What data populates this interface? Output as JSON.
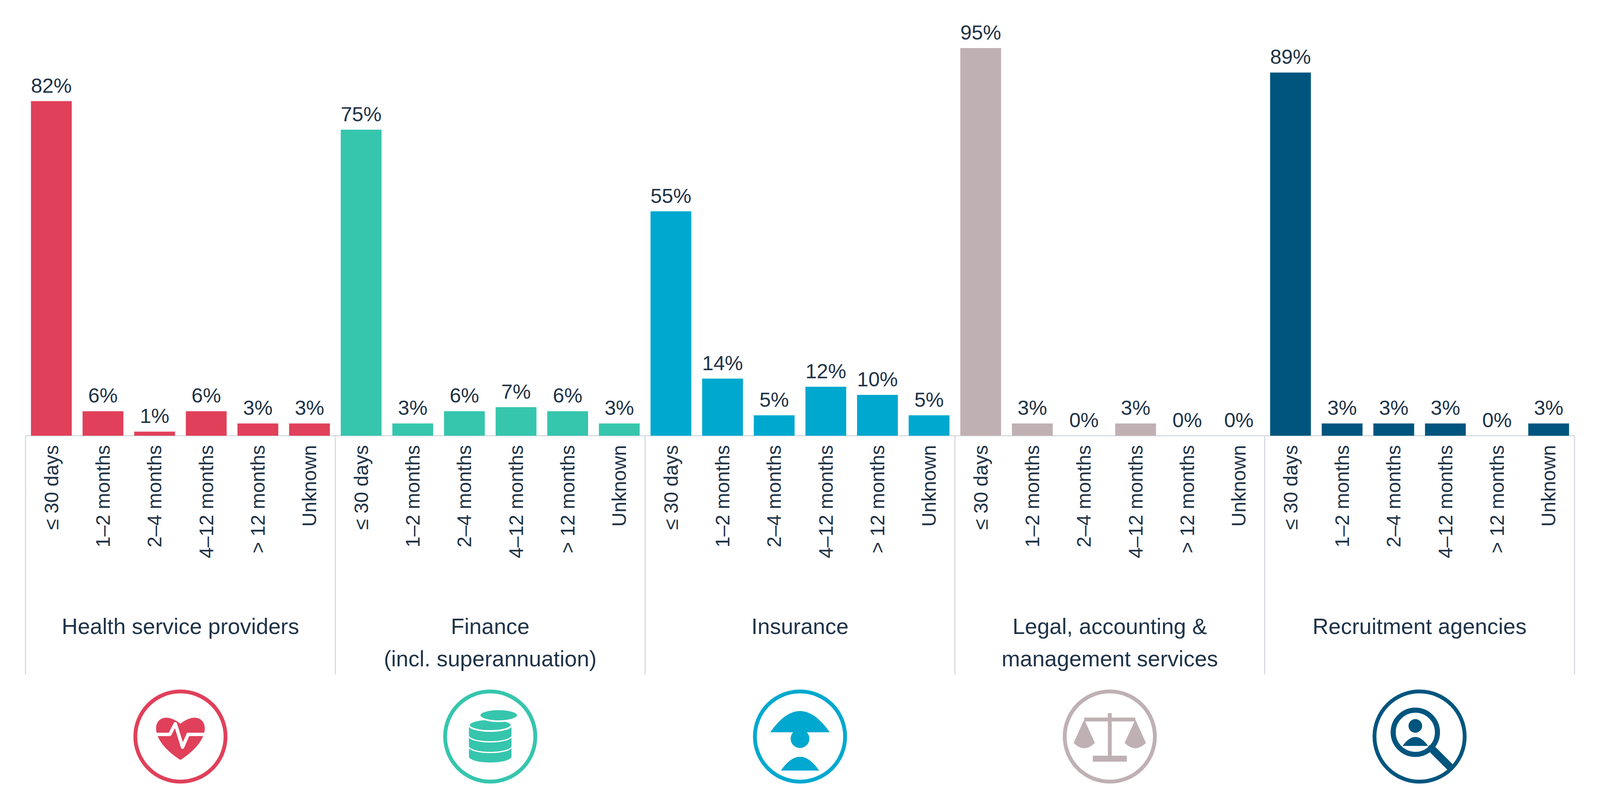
{
  "chart_data": {
    "type": "bar",
    "categories": [
      "≤ 30 days",
      "1–2 months",
      "2–4 months",
      "4–12 months",
      "> 12 months",
      "Unknown"
    ],
    "series": [
      {
        "name": "Health service providers",
        "color": "#e0405a",
        "values": [
          82,
          6,
          1,
          6,
          3,
          3
        ],
        "value_labels": [
          "82%",
          "6%",
          "1%",
          "6%",
          "3%",
          "3%"
        ]
      },
      {
        "name": "Finance\n(incl. superannuation)",
        "color": "#36c5ad",
        "values": [
          75,
          3,
          6,
          7,
          6,
          3
        ],
        "value_labels": [
          "75%",
          "3%",
          "6%",
          "7%",
          "6%",
          "3%"
        ]
      },
      {
        "name": "Insurance",
        "color": "#00a8cf",
        "values": [
          55,
          14,
          5,
          12,
          10,
          5
        ],
        "value_labels": [
          "55%",
          "14%",
          "5%",
          "12%",
          "10%",
          "5%"
        ]
      },
      {
        "name": "Legal, accounting &\nmanagement services",
        "color": "#bfb0b3",
        "values": [
          95,
          3,
          0,
          3,
          0,
          0
        ],
        "value_labels": [
          "95%",
          "3%",
          "0%",
          "3%",
          "0%",
          "0%"
        ]
      },
      {
        "name": "Recruitment agencies",
        "color": "#00557e",
        "values": [
          89,
          3,
          3,
          3,
          0,
          3
        ],
        "value_labels": [
          "89%",
          "3%",
          "3%",
          "3%",
          "0%",
          "3%"
        ]
      }
    ],
    "ylim": [
      0,
      100
    ],
    "grid": false,
    "data_labels": true,
    "tick_labels": "x"
  }
}
